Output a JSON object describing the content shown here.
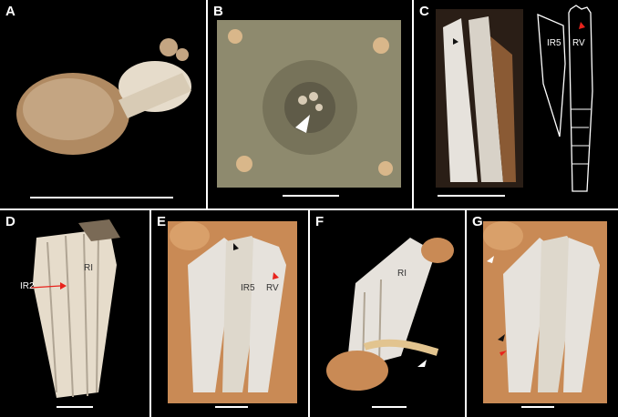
{
  "panels": {
    "A": {
      "label": "A"
    },
    "B": {
      "label": "B"
    },
    "C": {
      "label": "C",
      "diagram_labels": [
        "IR5",
        "RV"
      ]
    },
    "D": {
      "label": "D",
      "annotations": [
        "RI",
        "IR2"
      ]
    },
    "E": {
      "label": "E",
      "annotations": [
        "IR5",
        "RV"
      ]
    },
    "F": {
      "label": "F",
      "annotations": [
        "RI"
      ]
    },
    "G": {
      "label": "G"
    }
  },
  "colors": {
    "background": "#000000",
    "specimen_light": "#e6dccb",
    "specimen_tan": "#b08a62",
    "tissue_orange": "#c98a55",
    "arrow_red": "#e8231c",
    "arrow_white": "#ffffff",
    "arrow_black": "#111111"
  }
}
